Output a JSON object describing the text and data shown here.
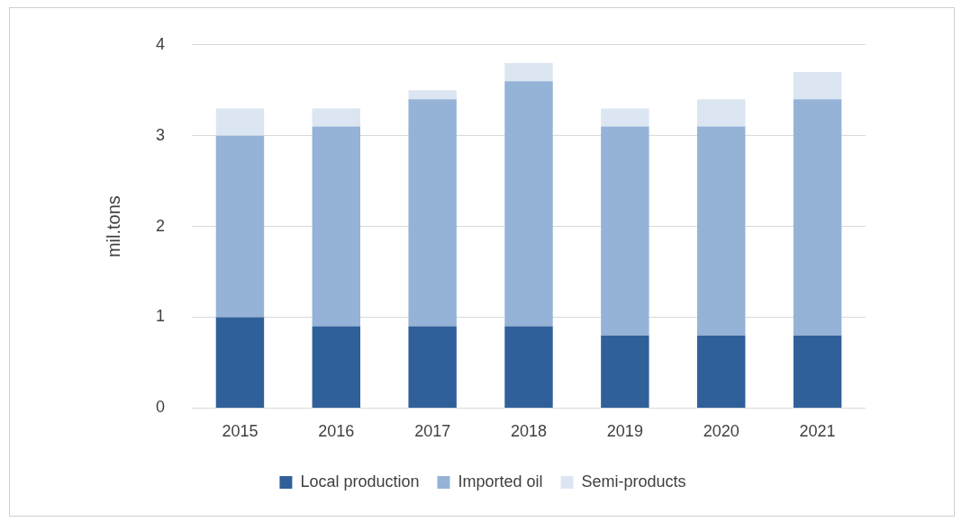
{
  "chart_data": {
    "type": "bar",
    "stacked": true,
    "ylabel": "mil.tons",
    "categories": [
      "2015",
      "2016",
      "2017",
      "2018",
      "2019",
      "2020",
      "2021"
    ],
    "series": [
      {
        "name": "Local production",
        "color": "#30609a",
        "values": [
          1.0,
          0.9,
          0.9,
          0.9,
          0.8,
          0.8,
          0.8
        ]
      },
      {
        "name": "Imported oil",
        "color": "#95b3d7",
        "values": [
          2.0,
          2.2,
          2.5,
          2.7,
          2.3,
          2.3,
          2.6
        ]
      },
      {
        "name": "Semi-products",
        "color": "#dce6f2",
        "values": [
          0.3,
          0.2,
          0.1,
          0.2,
          0.2,
          0.3,
          0.3
        ]
      }
    ],
    "ylim": [
      0,
      4
    ],
    "yticks": [
      0,
      1,
      2,
      3,
      4
    ],
    "grid": "y",
    "legend": "bottom"
  }
}
